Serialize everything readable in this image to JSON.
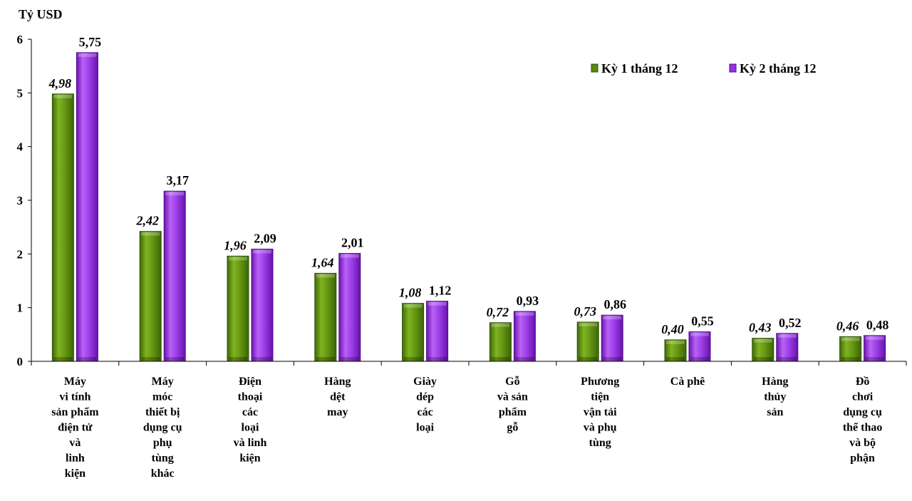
{
  "chart_data": {
    "type": "bar",
    "ylabel": "Tỷ USD",
    "ylim": [
      0,
      6
    ],
    "yticks": [
      "0",
      "1",
      "2",
      "3",
      "4",
      "5",
      "6"
    ],
    "legend_position": "top-right",
    "categories": [
      [
        "Máy",
        "vi tính",
        "sản phẩm",
        "điện tử",
        "và",
        "linh",
        "kiện"
      ],
      [
        "Máy",
        "móc",
        "thiết bị",
        "dụng cụ",
        "phụ",
        "tùng",
        "khác"
      ],
      [
        "Điện",
        "thoại",
        "các",
        "loại",
        "và linh",
        "kiện"
      ],
      [
        "Hàng",
        "dệt",
        "may"
      ],
      [
        "Giày",
        "dép",
        "các",
        "loại"
      ],
      [
        "Gỗ",
        "và sản",
        "phẩm",
        "gỗ"
      ],
      [
        "Phương",
        "tiện",
        "vận tải",
        "và phụ",
        "tùng"
      ],
      [
        "Cà phê"
      ],
      [
        "Hàng",
        "thủy",
        "sản"
      ],
      [
        "Đồ",
        "chơi",
        "dụng cụ",
        "thể thao",
        "và bộ",
        "phận"
      ]
    ],
    "series": [
      {
        "name": "Kỳ 1 tháng 12",
        "color": "#5a8a10",
        "values": [
          4.98,
          2.42,
          1.96,
          1.64,
          1.08,
          0.72,
          0.73,
          0.4,
          0.43,
          0.46
        ],
        "labels": [
          "4,98",
          "2,42",
          "1,96",
          "1,64",
          "1,08",
          "0,72",
          "0,73",
          "0,40",
          "0,43",
          "0,46"
        ]
      },
      {
        "name": "Kỳ 2 tháng 12",
        "color": "#9b30e0",
        "values": [
          5.75,
          3.17,
          2.09,
          2.01,
          1.12,
          0.93,
          0.86,
          0.55,
          0.52,
          0.48
        ],
        "labels": [
          "5,75",
          "3,17",
          "2,09",
          "2,01",
          "1,12",
          "0,93",
          "0,86",
          "0,55",
          "0,52",
          "0,48"
        ]
      }
    ]
  }
}
